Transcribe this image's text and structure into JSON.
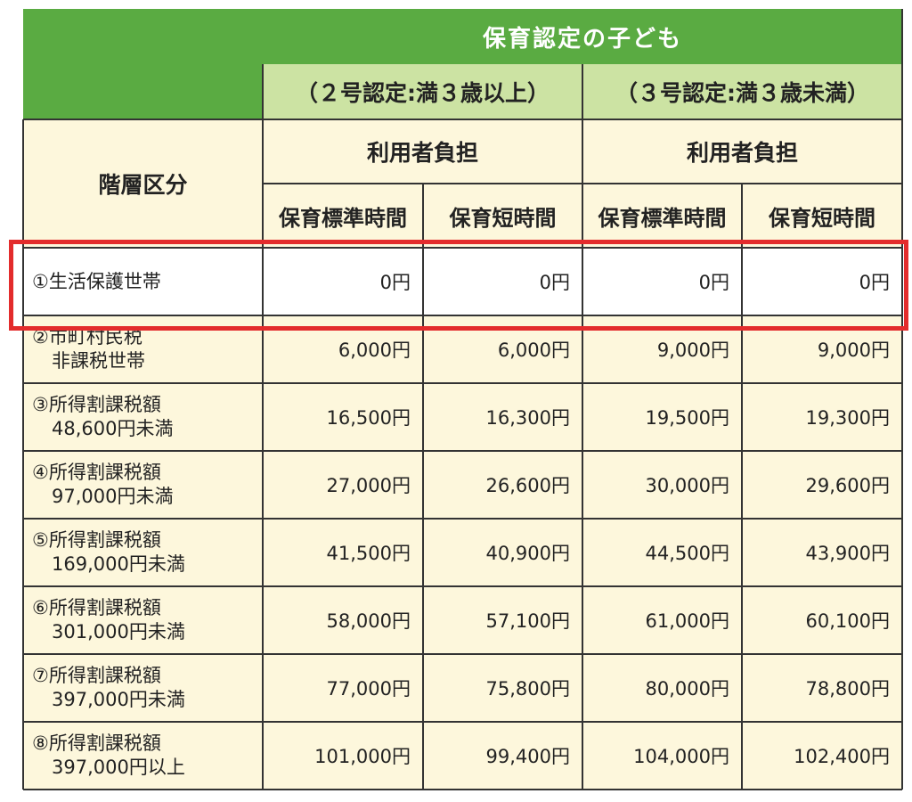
{
  "header": {
    "title": "保育認定の子ども",
    "group2": "（２号認定:満３歳以上）",
    "group3": "（３号認定:満３歳未満）",
    "tier_label": "階層区分",
    "burden_label": "利用者負担",
    "standard_time": "保育標準時間",
    "short_time": "保育短時間"
  },
  "rows": [
    {
      "line1": "①生活保護世帯",
      "line2": "",
      "values": [
        "0円",
        "0円",
        "0円",
        "0円"
      ]
    },
    {
      "line1": "②市町村民税",
      "line2": "非課税世帯",
      "values": [
        "6,000円",
        "6,000円",
        "9,000円",
        "9,000円"
      ]
    },
    {
      "line1": "③所得割課税額",
      "line2": "48,600円未満",
      "values": [
        "16,500円",
        "16,300円",
        "19,500円",
        "19,300円"
      ]
    },
    {
      "line1": "④所得割課税額",
      "line2": "97,000円未満",
      "values": [
        "27,000円",
        "26,600円",
        "30,000円",
        "29,600円"
      ]
    },
    {
      "line1": "⑤所得割課税額",
      "line2": "169,000円未満",
      "values": [
        "41,500円",
        "40,900円",
        "44,500円",
        "43,900円"
      ]
    },
    {
      "line1": "⑥所得割課税額",
      "line2": "301,000円未満",
      "values": [
        "58,000円",
        "57,100円",
        "61,000円",
        "60,100円"
      ]
    },
    {
      "line1": "⑦所得割課税額",
      "line2": "397,000円未満",
      "values": [
        "77,000円",
        "75,800円",
        "80,000円",
        "78,800円"
      ]
    },
    {
      "line1": "⑧所得割課税額",
      "line2": "397,000円以上",
      "values": [
        "101,000円",
        "99,400円",
        "104,000円",
        "102,400円"
      ]
    }
  ]
}
